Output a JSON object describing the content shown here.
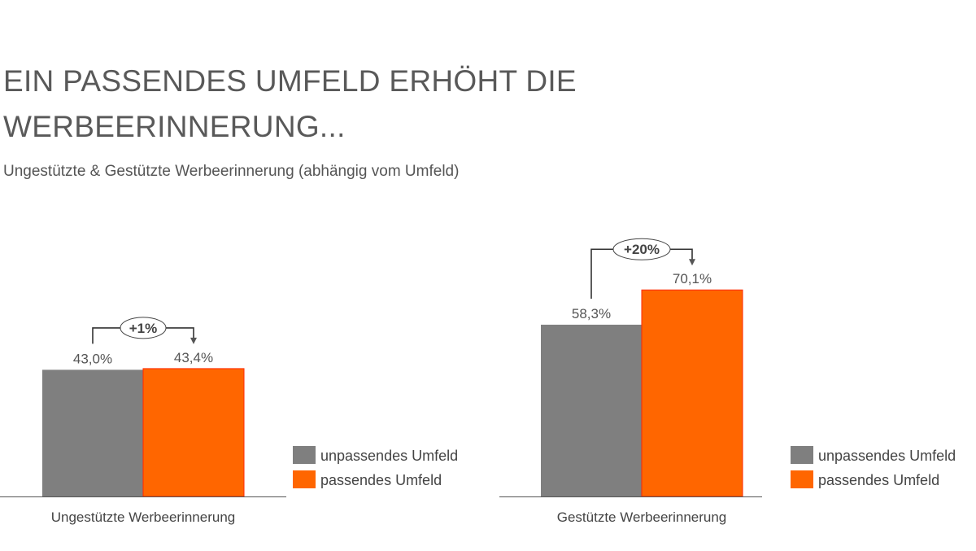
{
  "title_lines": [
    "EIN PASSENDES UMFELD ERHÖHT DIE",
    "WERBEERINNERUNG..."
  ],
  "subtitle": "Ungestützte & Gestützte Werbeerinnerung (abhängig vom Umfeld)",
  "colors": {
    "unpassend": "#7f7f7f",
    "passend": "#ff6600",
    "passend_border": "#ff2a00",
    "text": "#555555"
  },
  "chart_data": [
    {
      "type": "bar",
      "xlabel": "Ungestützte Werbeerinnerung",
      "series": [
        {
          "name": "unpassendes Umfeld",
          "value": 43.0,
          "label": "43,0%"
        },
        {
          "name": "passendes Umfeld",
          "value": 43.4,
          "label": "43,4%"
        }
      ],
      "annotation": "+1%",
      "legend": [
        "unpassendes Umfeld",
        "passendes Umfeld"
      ],
      "ylim": [
        0,
        100
      ]
    },
    {
      "type": "bar",
      "xlabel": "Gestützte Werbeerinnerung",
      "series": [
        {
          "name": "unpassendes Umfeld",
          "value": 58.3,
          "label": "58,3%"
        },
        {
          "name": "passendes Umfeld",
          "value": 70.1,
          "label": "70,1%"
        }
      ],
      "annotation": "+20%",
      "legend": [
        "unpassendes Umfeld",
        "passendes Umfeld"
      ],
      "ylim": [
        0,
        100
      ]
    }
  ]
}
